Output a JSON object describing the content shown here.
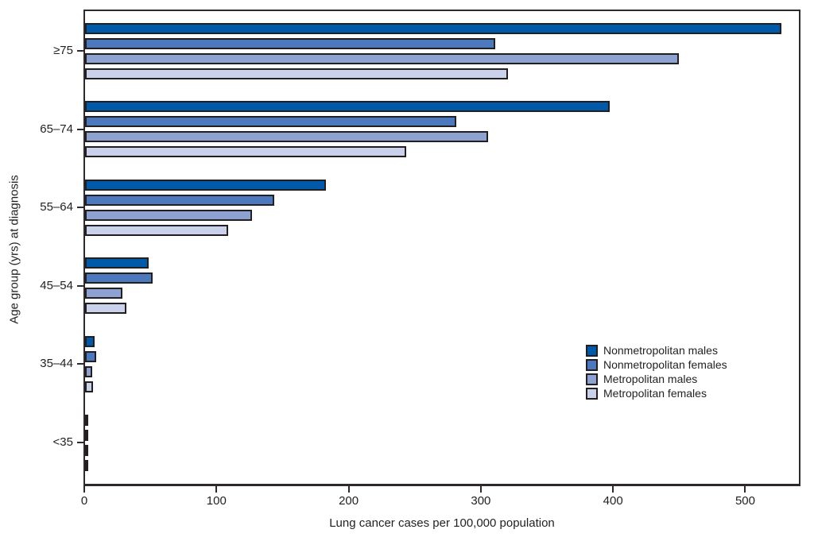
{
  "chart_data": {
    "type": "bar",
    "orientation": "horizontal",
    "title": "",
    "xlabel": "Lung cancer cases per 100,000 population",
    "ylabel": "Age group (yrs) at diagnosis",
    "categories": [
      "≥75",
      "65–74",
      "55–64",
      "45–54",
      "35–44",
      "<35"
    ],
    "series": [
      {
        "name": "Nonmetropolitan males",
        "color": "#0059a9",
        "values": [
          527,
          397,
          182,
          48,
          7.4,
          1
        ]
      },
      {
        "name": "Nonmetropolitan females",
        "color": "#4c79bd",
        "values": [
          310,
          281,
          143,
          51,
          8.4,
          1
        ]
      },
      {
        "name": "Metropolitan males",
        "color": "#8ea2d2",
        "values": [
          449,
          305,
          126,
          28,
          5.6,
          1
        ]
      },
      {
        "name": "Metropolitan females",
        "color": "#c9d2ea",
        "values": [
          320,
          243,
          108,
          31,
          6.2,
          1
        ]
      }
    ],
    "xlim": [
      0,
      540
    ],
    "x_ticks": [
      0,
      100,
      200,
      300,
      400,
      500
    ],
    "grid": false,
    "legend_position": "inside-right",
    "bar_border_color": "#231f20",
    "axis_color": "#2e2a2b",
    "text_color": "#231f20",
    "background_color": "#ffffff"
  }
}
